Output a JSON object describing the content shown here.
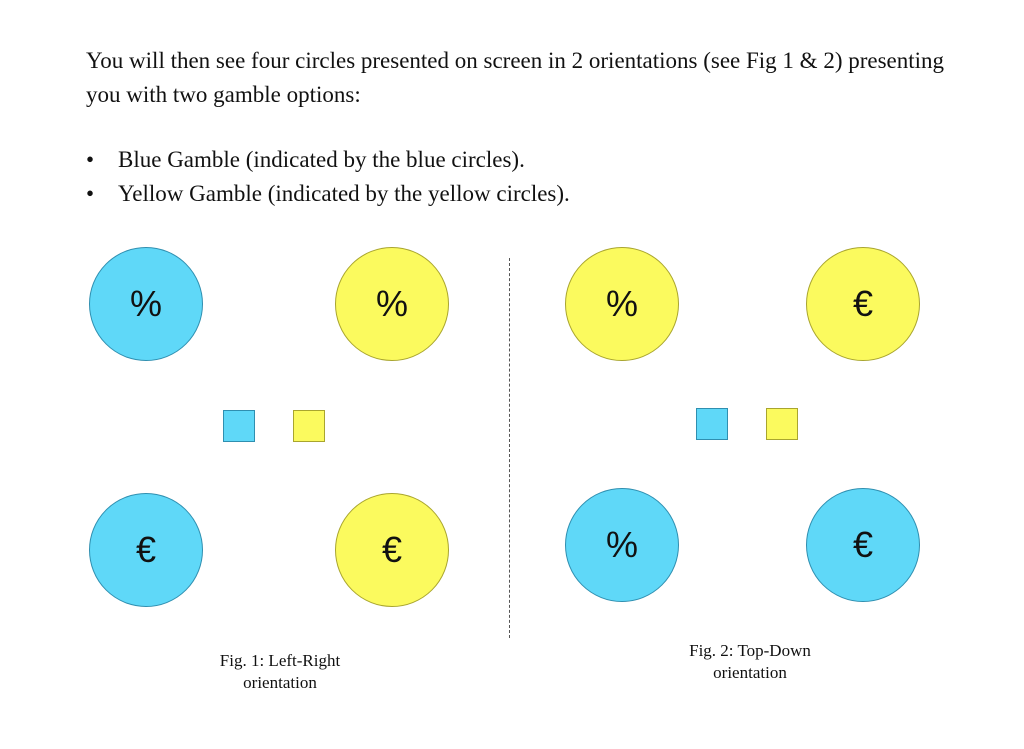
{
  "intro_text": "You will then see four circles presented on screen in 2 orientations (see Fig 1 & 2) presenting you with two gamble options:",
  "bullet_marker": "•",
  "bullets": [
    "Blue Gamble (indicated by the blue circles).",
    "Yellow Gamble (indicated by the yellow circles)."
  ],
  "colors": {
    "blue": "#5fd8f8",
    "yellow": "#fbfa5e"
  },
  "fig1": {
    "caption_line1": "Fig. 1: Left-Right",
    "caption_line2": "orientation",
    "top_left_symbol": "%",
    "top_right_symbol": "%",
    "bottom_left_symbol": "€",
    "bottom_right_symbol": "€"
  },
  "fig2": {
    "caption_line1": "Fig. 2: Top-Down",
    "caption_line2": "orientation",
    "top_left_symbol": "%",
    "top_right_symbol": "€",
    "bottom_left_symbol": "%",
    "bottom_right_symbol": "€"
  }
}
